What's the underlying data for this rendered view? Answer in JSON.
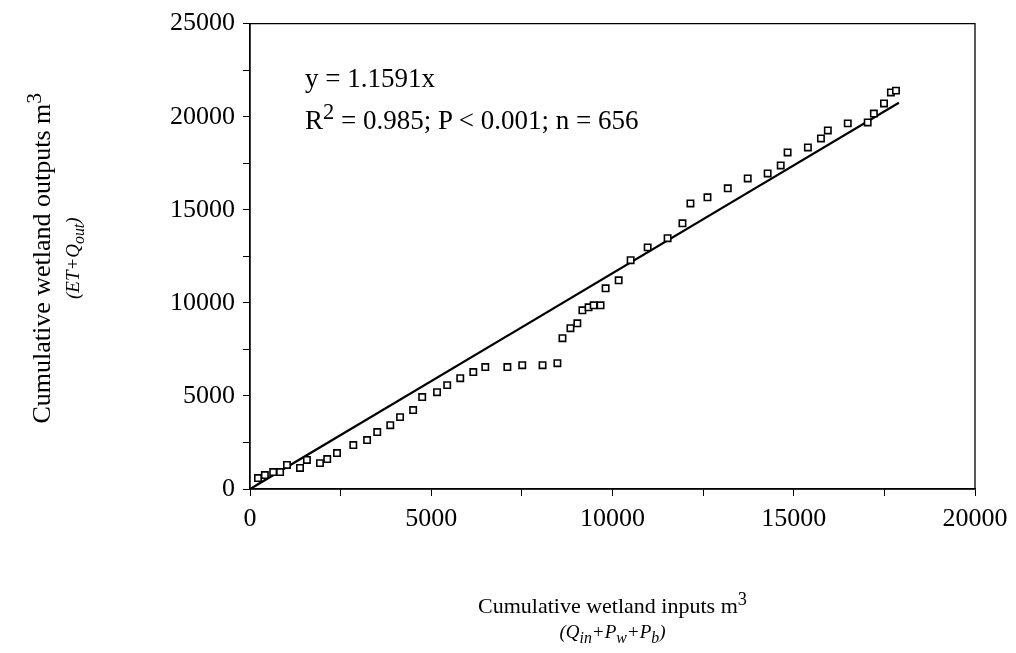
{
  "chart_data": {
    "type": "scatter",
    "xlabel": "Cumulative wetland inputs m$^{3}$\n(Q$_{in}$+P$_{w}$+P$_{b}$)",
    "ylabel": "Cumulative wetland outputs m$^{3}$\n(ET+Q$_{out}$)",
    "annotations": [
      "y = 1.1591x",
      "R$^{2}$ = 0.985; P < 0.001; n = 656"
    ],
    "xlim": [
      0,
      20000
    ],
    "ylim": [
      0,
      25000
    ],
    "xticks": [
      0,
      {
        "value": 2500,
        "label": null
      },
      5000,
      {
        "value": 7500,
        "label": null
      },
      10000,
      {
        "value": 12500,
        "label": null
      },
      15000,
      {
        "value": 17500,
        "label": null
      },
      20000
    ],
    "yticks": [
      0,
      {
        "value": 2500,
        "label": null
      },
      5000,
      {
        "value": 7500,
        "label": null
      },
      10000,
      {
        "value": 12500,
        "label": null
      },
      15000,
      {
        "value": 17500,
        "label": null
      },
      20000,
      {
        "value": 22500,
        "label": null
      },
      25000
    ],
    "grid": false,
    "legend": false,
    "marker": "square",
    "series": [
      {
        "color": "#000000",
        "x": [
          220,
          410,
          640,
          830,
          1020,
          1380,
          1570,
          1930,
          2130,
          2400,
          2850,
          3230,
          3510,
          3870,
          4140,
          4500,
          4750,
          5160,
          5440,
          5800,
          6160,
          6490,
          7100,
          7510,
          8070,
          8480,
          8620,
          8840,
          9030,
          9170,
          9340,
          9480,
          9670,
          9810,
          10170,
          10500,
          10970,
          11520,
          11930,
          12150,
          12620,
          13180,
          13730,
          14280,
          14640,
          14830,
          15390,
          15750,
          15940,
          16490,
          17040,
          17210,
          17490,
          17680,
          17820
        ],
        "values": [
          590,
          750,
          910,
          910,
          1290,
          1130,
          1560,
          1390,
          1610,
          1930,
          2360,
          2630,
          3060,
          3430,
          3860,
          4240,
          4940,
          5200,
          5580,
          5950,
          6280,
          6550,
          6550,
          6650,
          6650,
          6760,
          8100,
          8640,
          8900,
          9600,
          9760,
          9870,
          9870,
          10780,
          11210,
          12290,
          12980,
          13470,
          14270,
          15340,
          15670,
          16150,
          16680,
          16950,
          17380,
          18080,
          18350,
          18830,
          19260,
          19640,
          19690,
          20170,
          20710,
          21300,
          21400
        ]
      },
      {
        "type": "line",
        "color": "#000000",
        "marker": "none",
        "line_style": "solid",
        "x": [
          0,
          17900
        ],
        "values": [
          0,
          20750
        ]
      }
    ]
  }
}
